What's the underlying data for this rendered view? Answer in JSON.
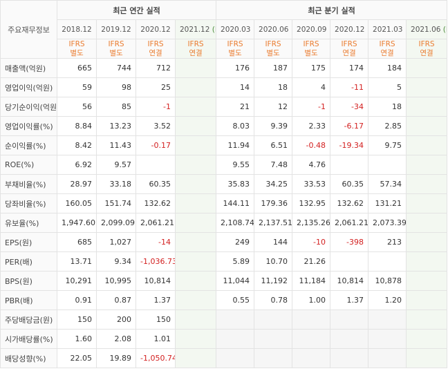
{
  "header": {
    "corner_label": "주요재무정보",
    "annual_group": "최근 연간 실적",
    "quarter_group": "최근 분기 실적",
    "estimate_mark": "(E)",
    "periods": [
      {
        "label": "2018.12",
        "ifrs": "IFRS",
        "basis": "별도"
      },
      {
        "label": "2019.12",
        "ifrs": "IFRS",
        "basis": "별도"
      },
      {
        "label": "2020.12",
        "ifrs": "IFRS",
        "basis": "연결"
      },
      {
        "label": "2021.12",
        "ifrs": "IFRS",
        "basis": "연결"
      },
      {
        "label": "2020.03",
        "ifrs": "IFRS",
        "basis": "별도"
      },
      {
        "label": "2020.06",
        "ifrs": "IFRS",
        "basis": "별도"
      },
      {
        "label": "2020.09",
        "ifrs": "IFRS",
        "basis": "별도"
      },
      {
        "label": "2020.12",
        "ifrs": "IFRS",
        "basis": "연결"
      },
      {
        "label": "2021.03",
        "ifrs": "IFRS",
        "basis": "연결"
      },
      {
        "label": "2021.06",
        "ifrs": "IFRS",
        "basis": "연결"
      }
    ]
  },
  "rows": [
    {
      "label": "매출액(억원)",
      "values": [
        "665",
        "744",
        "712",
        "",
        "176",
        "187",
        "175",
        "174",
        "184",
        ""
      ]
    },
    {
      "label": "영업이익(억원)",
      "values": [
        "59",
        "98",
        "25",
        "",
        "14",
        "18",
        "4",
        "-11",
        "5",
        ""
      ]
    },
    {
      "label": "당기순이익(억원)",
      "values": [
        "56",
        "85",
        "-1",
        "",
        "21",
        "12",
        "-1",
        "-34",
        "18",
        ""
      ]
    },
    {
      "label": "영업이익률(%)",
      "values": [
        "8.84",
        "13.23",
        "3.52",
        "",
        "8.03",
        "9.39",
        "2.33",
        "-6.17",
        "2.85",
        ""
      ]
    },
    {
      "label": "순이익률(%)",
      "values": [
        "8.42",
        "11.43",
        "-0.17",
        "",
        "11.94",
        "6.51",
        "-0.48",
        "-19.34",
        "9.75",
        ""
      ]
    },
    {
      "label": "ROE(%)",
      "values": [
        "6.92",
        "9.57",
        "",
        "",
        "9.55",
        "7.48",
        "4.76",
        "",
        "",
        ""
      ]
    },
    {
      "label": "부채비율(%)",
      "values": [
        "28.97",
        "33.18",
        "60.35",
        "",
        "35.83",
        "34.25",
        "33.53",
        "60.35",
        "57.34",
        ""
      ]
    },
    {
      "label": "당좌비율(%)",
      "values": [
        "160.05",
        "151.74",
        "132.62",
        "",
        "144.11",
        "179.36",
        "132.95",
        "132.62",
        "131.21",
        ""
      ]
    },
    {
      "label": "유보율(%)",
      "values": [
        "1,947.60",
        "2,099.09",
        "2,061.21",
        "",
        "2,108.74",
        "2,137.51",
        "2,135.26",
        "2,061.21",
        "2,073.39",
        ""
      ]
    },
    {
      "label": "EPS(원)",
      "values": [
        "685",
        "1,027",
        "-14",
        "",
        "249",
        "144",
        "-10",
        "-398",
        "213",
        ""
      ]
    },
    {
      "label": "PER(배)",
      "values": [
        "13.71",
        "9.34",
        "-1,036.73",
        "",
        "5.89",
        "10.70",
        "21.26",
        "",
        "",
        ""
      ]
    },
    {
      "label": "BPS(원)",
      "values": [
        "10,291",
        "10,995",
        "10,814",
        "",
        "11,044",
        "11,192",
        "11,184",
        "10,814",
        "10,878",
        ""
      ]
    },
    {
      "label": "PBR(배)",
      "values": [
        "0.91",
        "0.87",
        "1.37",
        "",
        "0.55",
        "0.78",
        "1.00",
        "1.37",
        "1.20",
        ""
      ]
    },
    {
      "label": "주당배당금(원)",
      "values": [
        "150",
        "200",
        "150",
        "",
        "",
        "",
        "",
        "",
        "",
        ""
      ]
    },
    {
      "label": "시가배당률(%)",
      "values": [
        "1.60",
        "2.08",
        "1.01",
        "",
        "",
        "",
        "",
        "",
        "",
        ""
      ]
    },
    {
      "label": "배당성향(%)",
      "values": [
        "22.05",
        "19.89",
        "-1,050.74",
        "",
        "",
        "",
        "",
        "",
        "",
        ""
      ]
    }
  ]
}
